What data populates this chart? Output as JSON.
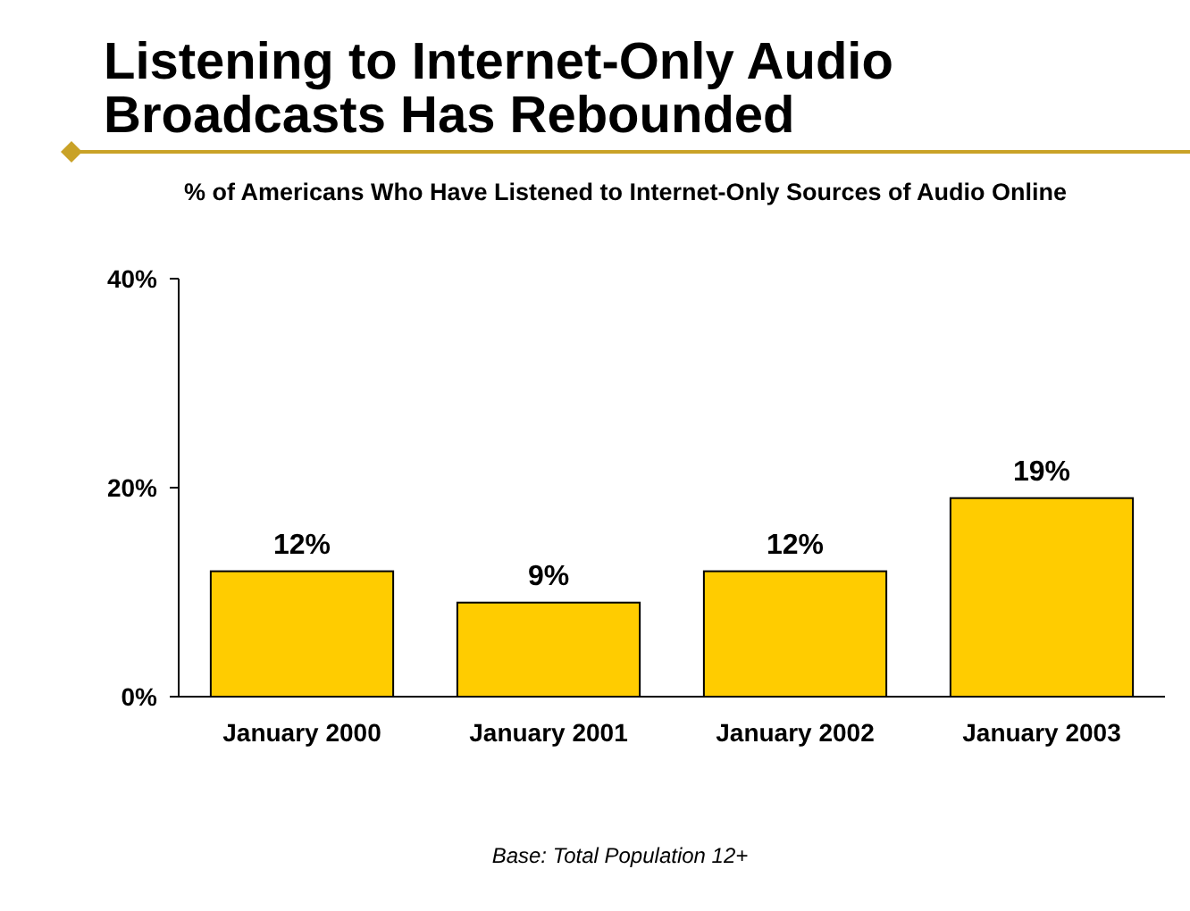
{
  "chart_data": {
    "type": "bar",
    "title": "Listening to Internet-Only Audio\nBroadcasts Has Rebounded",
    "subtitle": "% of Americans Who Have Listened to Internet-Only Sources of Audio Online",
    "categories": [
      "January 2000",
      "January 2001",
      "January 2002",
      "January 2003"
    ],
    "values": [
      12,
      9,
      12,
      19
    ],
    "value_labels": [
      "12%",
      "9%",
      "12%",
      "19%"
    ],
    "color": "#ffcc00",
    "ylim": [
      0,
      40
    ],
    "yticks": [
      {
        "value": 0,
        "label": "0%"
      },
      {
        "value": 20,
        "label": "20%"
      },
      {
        "value": 40,
        "label": "40%"
      }
    ],
    "grid": false,
    "annotations": [
      "Base: Total Population 12+"
    ]
  }
}
